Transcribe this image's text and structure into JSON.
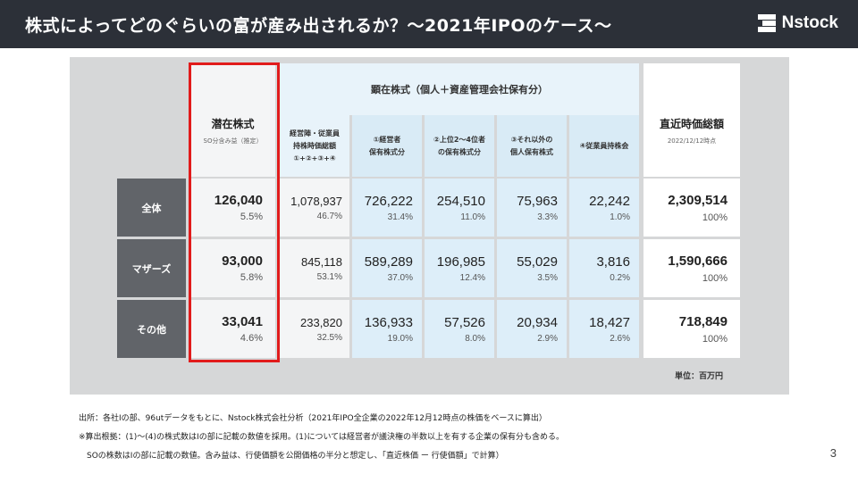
{
  "header": {
    "title": "株式によってどのぐらいの富が産み出されるか？〜2021年IPOのケース〜",
    "brand": "Nstock"
  },
  "table": {
    "latent": {
      "title": "潜在株式",
      "sub": "SO分含み益（推定）"
    },
    "group_title": "顕在株式（個人＋資産管理会社保有分）",
    "sub_headers": [
      {
        "lines": [
          "経営陣・従業員",
          "持株時価総額",
          "①+②+③+④"
        ]
      },
      {
        "lines": [
          "①経営者",
          "保有株式分"
        ]
      },
      {
        "lines": [
          "②上位2〜4位者",
          "の保有株式分"
        ]
      },
      {
        "lines": [
          "③それ以外の",
          "個人保有株式"
        ]
      },
      {
        "lines": [
          "④従業員持株会"
        ]
      }
    ],
    "market": {
      "title": "直近時価総額",
      "sub": "2022/12/12時点"
    },
    "rows": [
      {
        "label": "全体",
        "cells": [
          {
            "value": "126,040",
            "pct": "5.5%"
          },
          {
            "value": "1,078,937",
            "pct": "46.7%"
          },
          {
            "value": "726,222",
            "pct": "31.4%"
          },
          {
            "value": "254,510",
            "pct": "11.0%"
          },
          {
            "value": "75,963",
            "pct": "3.3%"
          },
          {
            "value": "22,242",
            "pct": "1.0%"
          },
          {
            "value": "2,309,514",
            "pct": "100%"
          }
        ]
      },
      {
        "label": "マザーズ",
        "cells": [
          {
            "value": "93,000",
            "pct": "5.8%"
          },
          {
            "value": "845,118",
            "pct": "53.1%"
          },
          {
            "value": "589,289",
            "pct": "37.0%"
          },
          {
            "value": "196,985",
            "pct": "12.4%"
          },
          {
            "value": "55,029",
            "pct": "3.5%"
          },
          {
            "value": "3,816",
            "pct": "0.2%"
          },
          {
            "value": "1,590,666",
            "pct": "100%"
          }
        ]
      },
      {
        "label": "その他",
        "cells": [
          {
            "value": "33,041",
            "pct": "4.6%"
          },
          {
            "value": "233,820",
            "pct": "32.5%"
          },
          {
            "value": "136,933",
            "pct": "19.0%"
          },
          {
            "value": "57,526",
            "pct": "8.0%"
          },
          {
            "value": "20,934",
            "pct": "2.9%"
          },
          {
            "value": "18,427",
            "pct": "2.6%"
          },
          {
            "value": "718,849",
            "pct": "100%"
          }
        ]
      }
    ],
    "unit": "単位：百万円"
  },
  "notes": [
    "出所：各社Iの部、96utデータをもとに、Nstock株式会社分析（2021年IPO全企業の2022年12月12時点の株価をベースに算出）",
    "※算出根拠：(1)〜(4)の株式数はIの部に記載の数値を採用。(1)については経営者が議決権の半数以上を有する企業の保有分も含める。",
    "　SOの株数はIの部に記載の数値。含み益は、行使価額を公開価格の半分と想定し、「直近株価 ー 行使価額」で計算）"
  ],
  "page_number": "3"
}
